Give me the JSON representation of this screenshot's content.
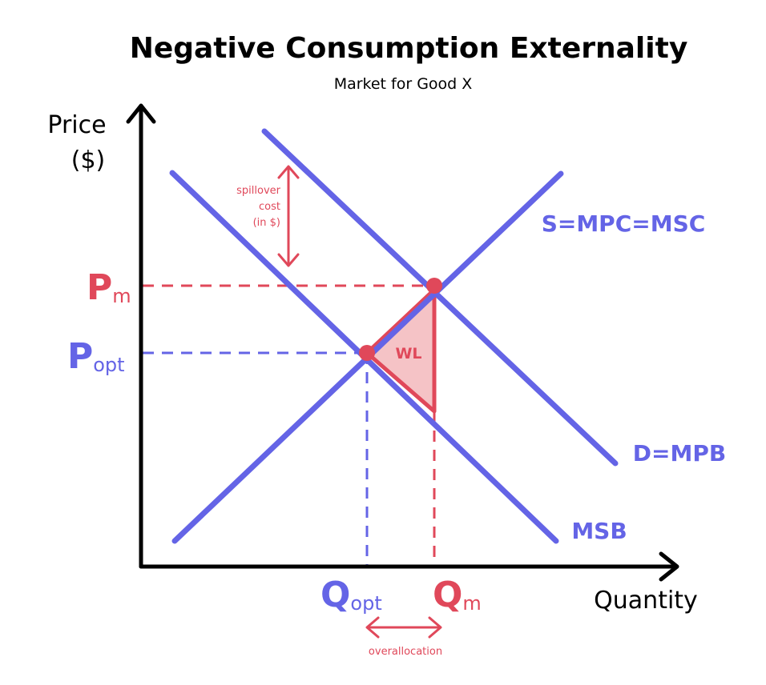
{
  "title": "Negative Consumption Externality",
  "subtitle": "Market for Good X",
  "axes": {
    "y_label_line1": "Price",
    "y_label_line2": "($)",
    "x_label": "Quantity"
  },
  "curves": {
    "supply": "S=MPC=MSC",
    "demand": "D=MPB",
    "social_benefit": "MSB"
  },
  "prices": {
    "market": {
      "letter": "P",
      "sub": "m"
    },
    "optimal": {
      "letter": "P",
      "sub": "opt"
    }
  },
  "quantities": {
    "optimal": {
      "letter": "Q",
      "sub": "opt"
    },
    "market": {
      "letter": "Q",
      "sub": "m"
    }
  },
  "annotations": {
    "spillover_line1": "spillover",
    "spillover_line2": "cost",
    "spillover_line3": "(in $)",
    "welfare_loss": "WL",
    "overallocation": "overallocation"
  },
  "colors": {
    "blue": "#6464e6",
    "red": "#e0485a",
    "wl_fill": "#f5c3c6",
    "axis": "#000000"
  }
}
